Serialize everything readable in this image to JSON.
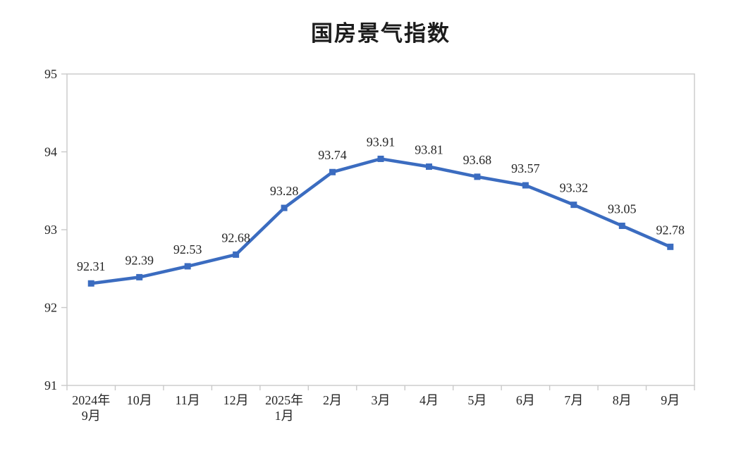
{
  "chart_data": {
    "type": "line",
    "title": "国房景气指数",
    "categories": [
      "2024年\n9月",
      "10月",
      "11月",
      "12月",
      "2025年\n1月",
      "2月",
      "3月",
      "4月",
      "5月",
      "6月",
      "7月",
      "8月",
      "9月"
    ],
    "values": [
      92.31,
      92.39,
      92.53,
      92.68,
      93.28,
      93.74,
      93.91,
      93.81,
      93.68,
      93.57,
      93.32,
      93.05,
      92.78
    ],
    "data_labels": [
      "92.31",
      "92.39",
      "92.53",
      "92.68",
      "93.28",
      "93.74",
      "93.91",
      "93.81",
      "93.68",
      "93.57",
      "93.32",
      "93.05",
      "92.78"
    ],
    "ylim": [
      91,
      95
    ],
    "yticks": [
      91,
      92,
      93,
      94,
      95
    ],
    "grid": false,
    "legend": "none",
    "marker": "square",
    "line_color": "#3B6CC0",
    "axis_color": "#c9c9c9",
    "text_color": "#262626"
  }
}
